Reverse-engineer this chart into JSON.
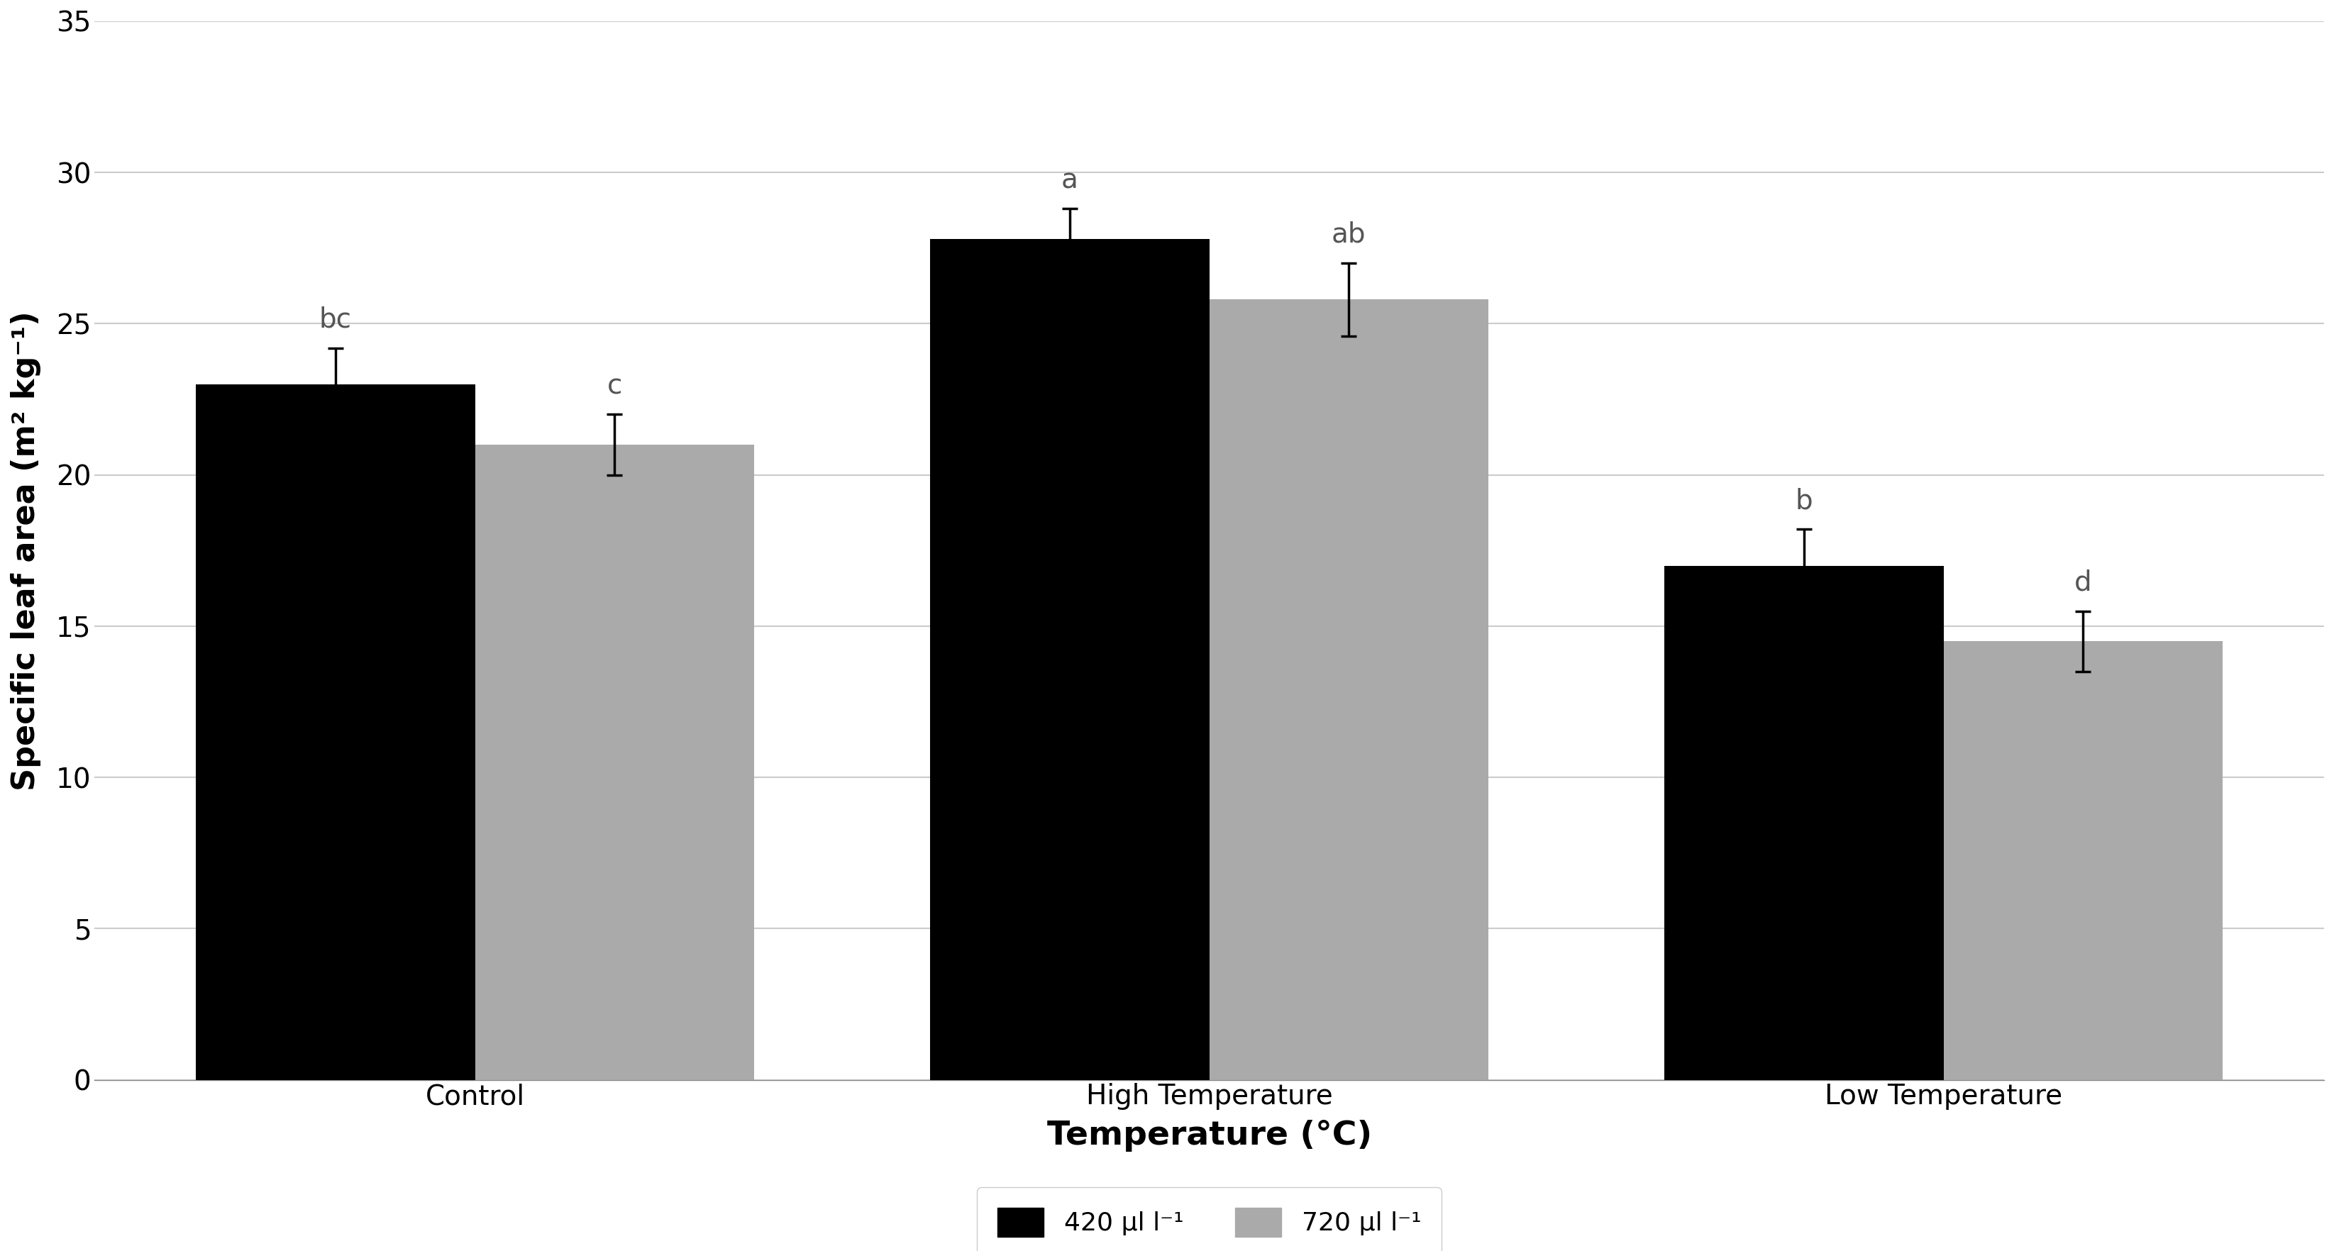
{
  "categories": [
    "Control",
    "High Temperature",
    "Low Temperature"
  ],
  "series": [
    {
      "label": "420 μl l⁻¹",
      "color": "#000000",
      "values": [
        23.0,
        27.8,
        17.0
      ],
      "errors": [
        1.2,
        1.0,
        1.2
      ],
      "letters": [
        "bc",
        "a",
        "b"
      ]
    },
    {
      "label": "720 μl l⁻¹",
      "color": "#aaaaaa",
      "values": [
        21.0,
        25.8,
        14.5
      ],
      "errors": [
        1.0,
        1.2,
        1.0
      ],
      "letters": [
        "c",
        "ab",
        "d"
      ]
    }
  ],
  "ylabel": "Specific leaf area (m² kg⁻¹)",
  "xlabel": "Temperature (°C)",
  "ylim": [
    0,
    35
  ],
  "yticks": [
    0,
    5,
    10,
    15,
    20,
    25,
    30,
    35
  ],
  "bar_width": 0.38,
  "background_color": "#ffffff",
  "grid_color": "#cccccc",
  "tick_label_fontsize": 28,
  "xlabel_fontsize": 34,
  "ylabel_fontsize": 32,
  "letter_fontsize": 28,
  "legend_fontsize": 26
}
